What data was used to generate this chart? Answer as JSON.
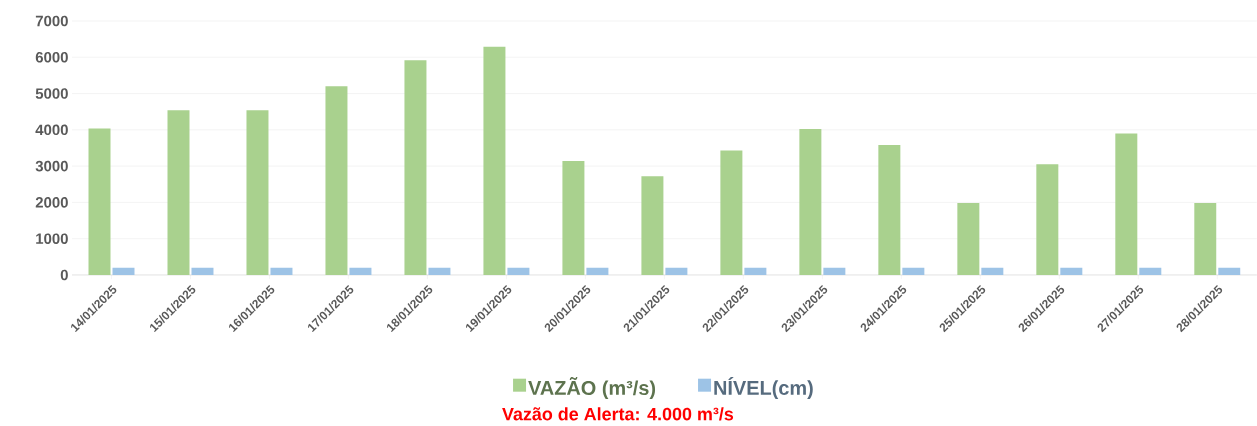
{
  "chart_data": {
    "type": "bar",
    "categories": [
      "14/01/2025",
      "15/01/2025",
      "16/01/2025",
      "17/01/2025",
      "18/01/2025",
      "19/01/2025",
      "20/01/2025",
      "21/01/2025",
      "22/01/2025",
      "23/01/2025",
      "24/01/2025",
      "25/01/2025",
      "26/01/2025",
      "27/01/2025",
      "28/01/2025"
    ],
    "series": [
      {
        "name": "VAZÃO (m³/s)",
        "color": "#a9d18e",
        "values": [
          4040,
          4540,
          4540,
          5200,
          5920,
          6290,
          3140,
          2720,
          3430,
          4020,
          3580,
          1980,
          3050,
          3900,
          1980
        ]
      },
      {
        "name": "NÍVEL(cm)",
        "color": "#9dc3e6",
        "values": [
          200,
          200,
          200,
          200,
          200,
          200,
          200,
          200,
          200,
          200,
          200,
          200,
          200,
          200,
          200
        ]
      }
    ],
    "ylim": [
      0,
      7000
    ],
    "yticks": [
      0,
      1000,
      2000,
      3000,
      4000,
      5000,
      6000,
      7000
    ],
    "grid": "y",
    "legend": "bottom",
    "annotations": [
      "Vazão de Alerta: 4.000 m³/s"
    ]
  }
}
